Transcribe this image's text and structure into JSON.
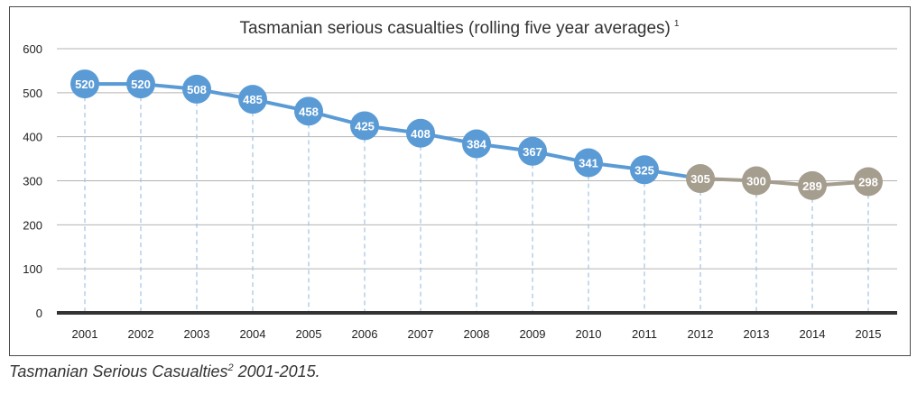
{
  "chart_data": {
    "type": "line",
    "title": "Tasmanian serious casualties (rolling five year averages)",
    "title_footnote": "1",
    "xlabel": "",
    "ylabel": "",
    "ylim": [
      0,
      600
    ],
    "yticks": [
      "0",
      "100",
      "200",
      "300",
      "400",
      "500",
      "600"
    ],
    "categories": [
      "2001",
      "2002",
      "2003",
      "2004",
      "2005",
      "2006",
      "2007",
      "2008",
      "2009",
      "2010",
      "2011",
      "2012",
      "2013",
      "2014",
      "2015"
    ],
    "values": [
      520,
      520,
      508,
      485,
      458,
      425,
      408,
      384,
      367,
      341,
      325,
      305,
      300,
      289,
      298
    ],
    "value_labels": [
      "520",
      "520",
      "508",
      "485",
      "458",
      "425",
      "408",
      "384",
      "367",
      "341",
      "325",
      "305",
      "300",
      "289",
      "298"
    ],
    "series": [
      {
        "segment": "historical",
        "from": "2001",
        "to": "2012",
        "color": "#5b9bd5"
      },
      {
        "segment": "recent",
        "from": "2012",
        "to": "2015",
        "color": "#a59d8e"
      }
    ],
    "grid": true,
    "legend": "none"
  },
  "caption": {
    "text_before": "Tasmanian Serious Casualties",
    "superscript": "2",
    "text_after": " 2001-2015."
  }
}
